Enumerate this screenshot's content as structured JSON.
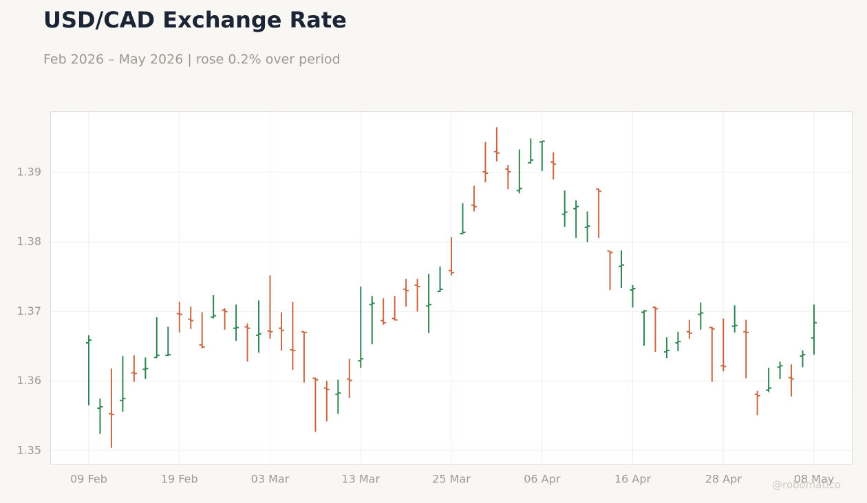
{
  "chart_data": {
    "type": "ohlc",
    "title": "USD/CAD Exchange Rate",
    "subtitle": "Feb 2026 – May 2026 | rose 0.2% over period",
    "watermark": "@robomatico",
    "categories": [
      "09 Feb",
      null,
      null,
      null,
      null,
      null,
      null,
      null,
      "19 Feb",
      null,
      null,
      null,
      null,
      null,
      null,
      null,
      "03 Mar",
      null,
      null,
      null,
      null,
      null,
      null,
      null,
      "13 Mar",
      null,
      null,
      null,
      null,
      null,
      null,
      null,
      "25 Mar",
      null,
      null,
      null,
      null,
      null,
      null,
      null,
      "06 Apr",
      null,
      null,
      null,
      null,
      null,
      null,
      null,
      "16 Apr",
      null,
      null,
      null,
      null,
      null,
      null,
      null,
      "28 Apr",
      null,
      null,
      null,
      null,
      null,
      null,
      null,
      "08 May"
    ],
    "open": [
      1.3655,
      1.3561,
      1.3553,
      1.3572,
      1.3612,
      1.3617,
      1.3634,
      1.3637,
      1.3697,
      1.3689,
      1.3652,
      1.3692,
      1.3702,
      1.3676,
      1.3678,
      1.3666,
      1.3672,
      1.3676,
      1.3645,
      1.3671,
      1.3604,
      1.359,
      1.3581,
      1.3603,
      1.3629,
      1.371,
      1.3687,
      1.369,
      1.3732,
      1.3738,
      1.3708,
      1.3729,
      1.3759,
      1.3812,
      1.3853,
      1.3901,
      1.393,
      1.3905,
      1.3874,
      1.3914,
      1.3944,
      1.3915,
      1.384,
      1.3848,
      1.3821,
      1.3876,
      1.3787,
      1.3765,
      1.3731,
      1.3699,
      1.3706,
      1.3642,
      1.3655,
      1.3671,
      1.3696,
      1.3677,
      1.3622,
      1.3679,
      1.3671,
      1.3581,
      1.3587,
      1.362,
      1.3605,
      1.3636,
      1.3662
    ],
    "high": [
      1.3666,
      1.3575,
      1.3618,
      1.3636,
      1.3637,
      1.3634,
      1.3692,
      1.3678,
      1.3714,
      1.3707,
      1.3699,
      1.3724,
      1.3705,
      1.371,
      1.3683,
      1.3716,
      1.3752,
      1.3699,
      1.3714,
      1.3671,
      1.3605,
      1.36,
      1.3602,
      1.3632,
      1.3736,
      1.3722,
      1.3719,
      1.3722,
      1.3747,
      1.3747,
      1.3754,
      1.3765,
      1.3807,
      1.3856,
      1.3881,
      1.3944,
      1.3965,
      1.3911,
      1.3933,
      1.3949,
      1.3945,
      1.3929,
      1.3874,
      1.386,
      1.3844,
      1.3877,
      1.3787,
      1.3788,
      1.3738,
      1.3702,
      1.3707,
      1.3663,
      1.3671,
      1.3688,
      1.3713,
      1.3678,
      1.369,
      1.3709,
      1.3688,
      1.3586,
      1.3619,
      1.3628,
      1.3624,
      1.3644,
      1.371
    ],
    "low": [
      1.3565,
      1.3524,
      1.3504,
      1.3556,
      1.3599,
      1.3603,
      1.3633,
      1.3636,
      1.367,
      1.3675,
      1.3647,
      1.369,
      1.3674,
      1.3658,
      1.3628,
      1.3641,
      1.3661,
      1.3644,
      1.3616,
      1.3598,
      1.3527,
      1.3542,
      1.3553,
      1.3576,
      1.3619,
      1.3653,
      1.3681,
      1.3687,
      1.3707,
      1.37,
      1.3669,
      1.3728,
      1.3752,
      1.3811,
      1.3844,
      1.3886,
      1.3916,
      1.3876,
      1.387,
      1.3913,
      1.3902,
      1.389,
      1.3822,
      1.3806,
      1.38,
      1.3806,
      1.3731,
      1.3734,
      1.3706,
      1.3651,
      1.3642,
      1.3633,
      1.3643,
      1.3661,
      1.3674,
      1.3599,
      1.3614,
      1.367,
      1.3604,
      1.3551,
      1.3584,
      1.3603,
      1.3578,
      1.362,
      1.3638
    ],
    "close": [
      1.3659,
      1.3563,
      1.3552,
      1.3575,
      1.3611,
      1.3618,
      1.3637,
      1.3638,
      1.3696,
      1.3687,
      1.3649,
      1.3694,
      1.37,
      1.3677,
      1.3676,
      1.3668,
      1.3671,
      1.3673,
      1.3644,
      1.367,
      1.3602,
      1.3588,
      1.3583,
      1.3601,
      1.3632,
      1.3712,
      1.3684,
      1.3688,
      1.373,
      1.3736,
      1.371,
      1.3732,
      1.3756,
      1.3814,
      1.3851,
      1.3899,
      1.3928,
      1.3901,
      1.3877,
      1.3918,
      1.3945,
      1.3912,
      1.3843,
      1.3851,
      1.3823,
      1.3873,
      1.3785,
      1.3767,
      1.3733,
      1.3701,
      1.3704,
      1.3644,
      1.3657,
      1.3669,
      1.3698,
      1.3675,
      1.3621,
      1.368,
      1.367,
      1.3579,
      1.359,
      1.3622,
      1.3603,
      1.3638,
      1.3684
    ],
    "up_color": "#2e8554",
    "down_color": "#c8663f",
    "ylim": [
      1.3481,
      1.3988
    ],
    "yticks": [
      1.35,
      1.36,
      1.37,
      1.38,
      1.39
    ],
    "grid": true
  }
}
